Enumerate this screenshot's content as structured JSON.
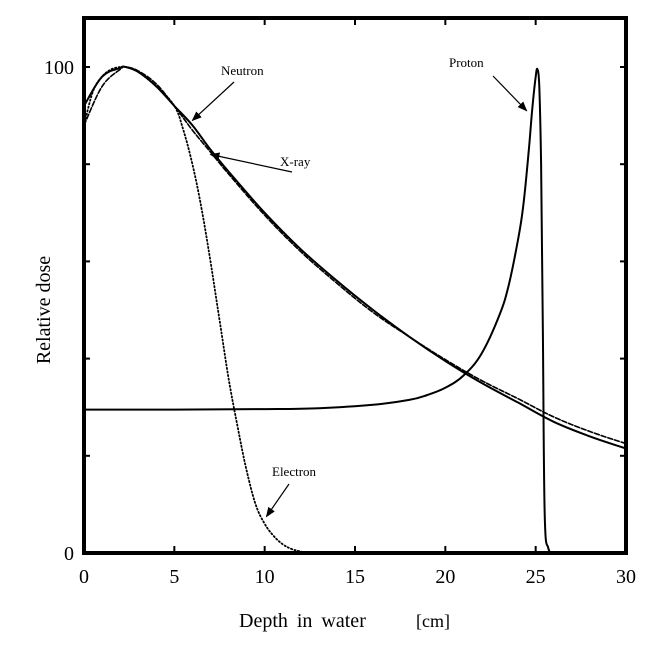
{
  "chart_data": {
    "type": "line",
    "title": "",
    "xlabel": "Depth in water",
    "xunit": "[cm]",
    "ylabel": "Relative dose",
    "xlim": [
      0,
      30
    ],
    "ylim": [
      0,
      100
    ],
    "x_ticks": [
      0,
      5,
      10,
      15,
      20,
      25,
      30
    ],
    "y_ticks": [
      0,
      100
    ],
    "grid": false,
    "series": [
      {
        "name": "Neutron",
        "style": "solid",
        "x": [
          0,
          1,
          2,
          2.3,
          3,
          4,
          5,
          6,
          7,
          8,
          10,
          12,
          14,
          16,
          18,
          20,
          22,
          24,
          26,
          28,
          30
        ],
        "y": [
          92,
          98,
          99.8,
          100,
          99,
          96,
          92,
          88,
          83,
          78.5,
          70,
          62.5,
          56,
          50,
          44.5,
          39.5,
          35,
          31,
          27,
          24,
          21.5
        ]
      },
      {
        "name": "X-ray",
        "style": "dashed",
        "x": [
          0,
          1,
          2,
          2.3,
          3,
          4,
          5,
          6,
          7,
          8,
          10,
          12,
          14,
          16,
          18,
          20,
          22,
          24,
          26,
          28,
          30
        ],
        "y": [
          88,
          96,
          99.5,
          100,
          99.2,
          96.5,
          92,
          87,
          82.5,
          78,
          69.5,
          62,
          55.5,
          49.5,
          44.5,
          39.8,
          35.5,
          31.8,
          28,
          25,
          22.5
        ]
      },
      {
        "name": "Proton",
        "style": "solid",
        "x": [
          0,
          5,
          10,
          13,
          16,
          18,
          19,
          20,
          21,
          22,
          23,
          23.5,
          24,
          24.3,
          24.6,
          24.8,
          25,
          25.1,
          25.2,
          25.3,
          25.4,
          25.5,
          25.7,
          26
        ],
        "y": [
          29.5,
          29.5,
          29.6,
          29.8,
          30.5,
          31.5,
          32.5,
          34,
          36.5,
          41,
          49,
          55,
          64,
          71,
          82,
          91,
          98,
          99.5,
          96,
          80,
          45,
          8,
          1,
          0
        ]
      },
      {
        "name": "Electron",
        "style": "dotted",
        "x": [
          0,
          0.5,
          1,
          1.5,
          2,
          2.3,
          3,
          4,
          5,
          5.5,
          6,
          6.5,
          7,
          7.5,
          8,
          8.5,
          9,
          9.5,
          10,
          10.5,
          11,
          11.5,
          12,
          12.3
        ],
        "y": [
          88,
          95,
          98,
          99.5,
          100,
          100,
          99,
          96,
          92,
          87,
          80,
          71,
          60,
          48,
          36,
          26,
          17,
          10,
          6,
          3.5,
          1.8,
          0.8,
          0.3,
          0
        ]
      }
    ],
    "annotations": [
      {
        "text": "Neutron",
        "target_x": 6.0,
        "target_y": 89
      },
      {
        "text": "X-ray",
        "target_x": 7.0,
        "target_y": 82
      },
      {
        "text": "Proton",
        "target_x": 24.5,
        "target_y": 91
      },
      {
        "text": "Electron",
        "target_x": 10.1,
        "target_y": 7.5
      }
    ]
  }
}
